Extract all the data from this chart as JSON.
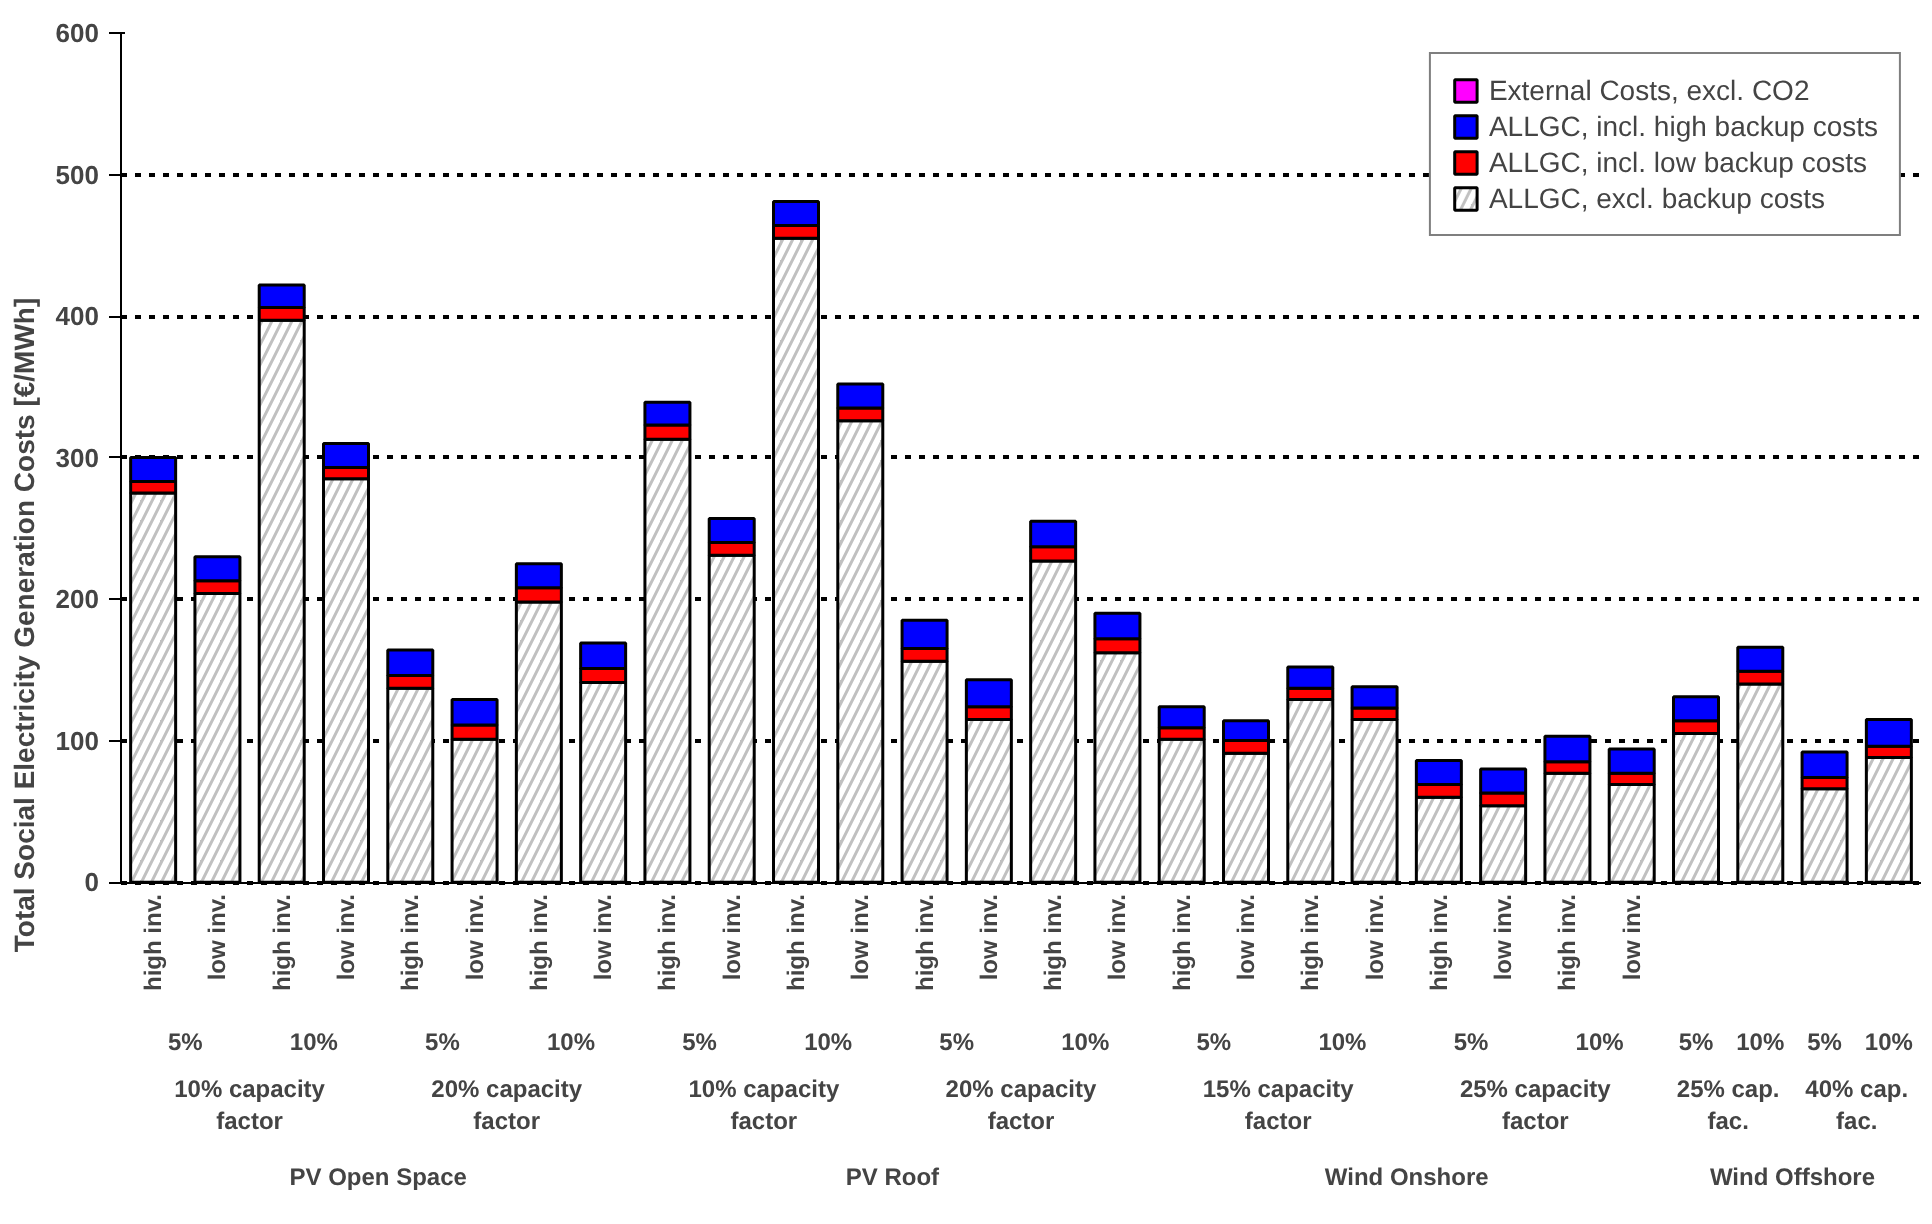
{
  "chart_data": {
    "type": "bar",
    "stacked": true,
    "ylabel": "Total Social Electricity Generation Costs [€/MWh]",
    "categories": [
      [
        "PV Open Space",
        "10% capacity factor",
        "5%",
        "high inv."
      ],
      [
        null,
        null,
        null,
        "low inv."
      ],
      [
        null,
        null,
        "10%",
        "high inv."
      ],
      [
        null,
        null,
        null,
        "low inv."
      ],
      [
        null,
        "20% capacity factor",
        "5%",
        "high inv."
      ],
      [
        null,
        null,
        null,
        "low inv."
      ],
      [
        null,
        null,
        "10%",
        "high inv."
      ],
      [
        null,
        null,
        null,
        "low inv."
      ],
      [
        "PV Roof",
        "10% capacity factor",
        "5%",
        "high inv."
      ],
      [
        null,
        null,
        null,
        "low inv."
      ],
      [
        null,
        null,
        "10%",
        "high inv."
      ],
      [
        null,
        null,
        null,
        "low inv."
      ],
      [
        null,
        "20% capacity factor",
        "5%",
        "high inv."
      ],
      [
        null,
        null,
        null,
        "low inv."
      ],
      [
        null,
        null,
        "10%",
        "high inv."
      ],
      [
        null,
        null,
        null,
        "low inv."
      ],
      [
        "Wind Onshore",
        "15% capacity factor",
        "5%",
        "high inv."
      ],
      [
        null,
        null,
        null,
        "low inv."
      ],
      [
        null,
        null,
        "10%",
        "high inv."
      ],
      [
        null,
        null,
        null,
        "low inv."
      ],
      [
        null,
        "25% capacity factor",
        "5%",
        "high inv."
      ],
      [
        null,
        null,
        null,
        "low inv."
      ],
      [
        null,
        null,
        "10%",
        "high inv."
      ],
      [
        null,
        null,
        null,
        "low inv."
      ],
      [
        "Wind Offshore",
        "25% cap. fac.",
        "5%"
      ],
      [
        null,
        null,
        "10%"
      ],
      [
        null,
        "40% cap. fac.",
        "5%"
      ],
      [
        null,
        null,
        "10%"
      ]
    ],
    "series": [
      {
        "name": "ALLGC, excl. backup costs",
        "color": "#c0c0c0",
        "values": [
          275,
          204,
          397,
          285,
          137,
          101,
          198,
          141,
          313,
          231,
          455,
          326,
          156,
          115,
          227,
          162,
          101,
          91,
          129,
          115,
          60,
          54,
          77,
          69,
          105,
          140,
          66,
          88
        ]
      },
      {
        "name": "ALLGC, incl. low backup costs",
        "color": "#ff0000",
        "values": [
          8,
          9,
          9,
          8,
          9,
          10,
          10,
          10,
          10,
          9,
          9,
          9,
          9,
          9,
          10,
          10,
          8,
          9,
          8,
          8,
          9,
          9,
          8,
          8,
          9,
          9,
          8,
          8
        ]
      },
      {
        "name": "ALLGC, incl. high backup costs",
        "color": "#0000ff",
        "values": [
          17,
          17,
          16,
          17,
          18,
          18,
          17,
          18,
          16,
          17,
          17,
          17,
          20,
          19,
          18,
          18,
          15,
          14,
          15,
          15,
          17,
          17,
          18,
          17,
          17,
          17,
          18,
          19
        ]
      },
      {
        "name": "External Costs, excl. CO2",
        "color": "#ff00ff",
        "values": [
          null,
          null,
          null,
          null,
          null,
          null,
          null,
          null,
          null,
          null,
          null,
          null,
          null,
          null,
          null,
          null,
          null,
          null,
          null,
          null,
          null,
          null,
          null,
          null,
          null,
          null,
          null,
          null
        ]
      }
    ],
    "ylim": [
      0,
      600
    ],
    "yticks": [
      0,
      100,
      200,
      300,
      400,
      500,
      600
    ],
    "grid": "y",
    "legend": "top right"
  }
}
